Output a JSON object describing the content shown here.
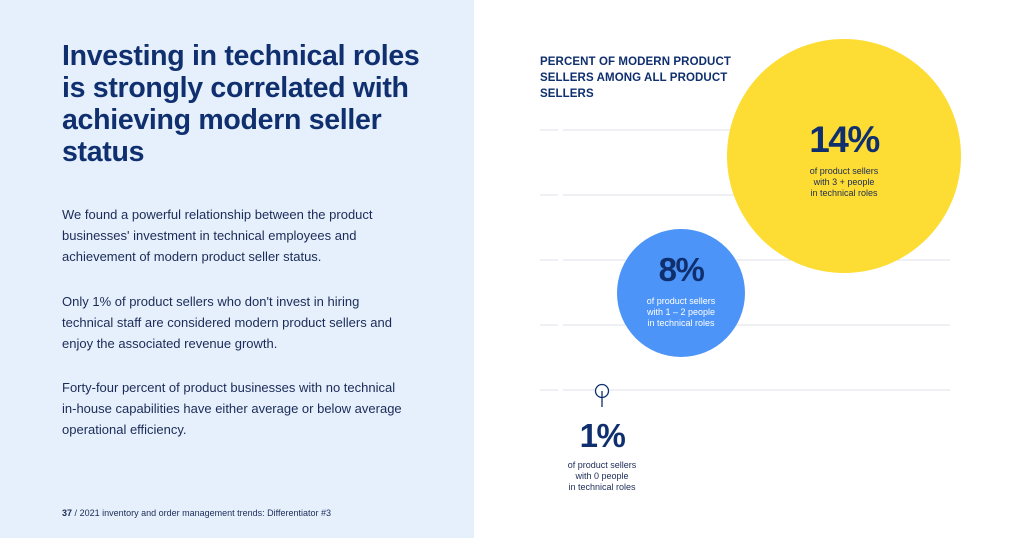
{
  "heading": "Investing in technical roles is strongly correlated with achieving modern seller status",
  "paragraphs": [
    "We found a powerful relationship between the product businesses' investment in technical employees and achievement of modern product seller status.",
    "Only 1% of product sellers who don't invest in hiring technical staff are considered modern product sellers and enjoy the associated revenue growth.",
    "Forty-four percent of product businesses with no technical in-house capabilities have either average or below average operational efficiency."
  ],
  "footer": {
    "page": "37",
    "separator": "/",
    "text": "2021 inventory and order management trends: Differentiator #3"
  },
  "chart_data": {
    "type": "bubble",
    "title": "PERCENT OF MODERN PRODUCT SELLERS AMONG ALL PRODUCT SELLERS",
    "grid": true,
    "series": [
      {
        "label": "1%",
        "value": 1,
        "caption": [
          "of product sellers",
          "with 0 people",
          "in technical roles"
        ],
        "color": "#ffffff"
      },
      {
        "label": "8%",
        "value": 8,
        "caption": [
          "of product sellers",
          "with 1 – 2 people",
          "in technical roles"
        ],
        "color": "#4c94f7"
      },
      {
        "label": "14%",
        "value": 14,
        "caption": [
          "of product sellers",
          "with 3 + people",
          "in technical roles"
        ],
        "color": "#fddc33"
      }
    ]
  },
  "colors": {
    "left_bg": "#e6f0fc",
    "navy": "#0f2f6e",
    "blue": "#4c94f7",
    "yellow": "#fddc33",
    "grid": "#dde1e8"
  }
}
